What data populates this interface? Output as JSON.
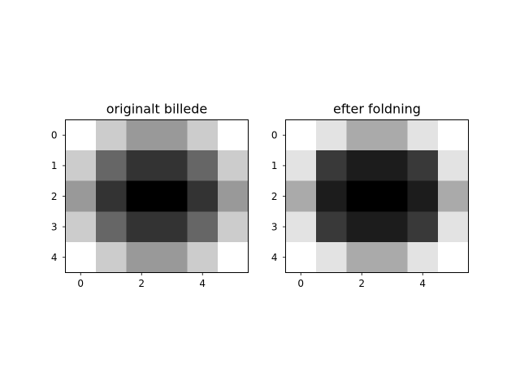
{
  "chart_data": [
    {
      "type": "heatmap",
      "title": "originalt billede",
      "colormap": "gray",
      "x_ticks": [
        "0",
        "2",
        "4"
      ],
      "x_tick_values": [
        0,
        2,
        4
      ],
      "y_ticks": [
        "0",
        "1",
        "2",
        "3",
        "4"
      ],
      "y_tick_values": [
        0,
        1,
        2,
        3,
        4
      ],
      "xlim": [
        -0.5,
        5.5
      ],
      "ylim": [
        4.5,
        -0.5
      ],
      "grid": false,
      "values": [
        [
          0.7,
          0.6,
          0.5,
          0.5,
          0.6,
          0.7
        ],
        [
          0.6,
          0.4,
          0.3,
          0.3,
          0.4,
          0.6
        ],
        [
          0.5,
          0.3,
          0.2,
          0.2,
          0.3,
          0.5
        ],
        [
          0.6,
          0.4,
          0.3,
          0.3,
          0.4,
          0.6
        ],
        [
          0.7,
          0.6,
          0.5,
          0.5,
          0.6,
          0.7
        ]
      ]
    },
    {
      "type": "heatmap",
      "title": "efter foldning",
      "colormap": "gray",
      "x_ticks": [
        "0",
        "2",
        "4"
      ],
      "x_tick_values": [
        0,
        2,
        4
      ],
      "y_ticks": [
        "0",
        "1",
        "2",
        "3",
        "4"
      ],
      "y_tick_values": [
        0,
        1,
        2,
        3,
        4
      ],
      "xlim": [
        -0.5,
        5.5
      ],
      "ylim": [
        4.5,
        -0.5
      ],
      "grid": false,
      "values": [
        [
          0.9,
          0.8,
          0.6,
          0.6,
          0.8,
          0.9
        ],
        [
          0.8,
          0.2,
          0.1,
          0.1,
          0.2,
          0.8
        ],
        [
          0.6,
          0.1,
          0.0,
          0.0,
          0.1,
          0.6
        ],
        [
          0.8,
          0.2,
          0.1,
          0.1,
          0.2,
          0.8
        ],
        [
          0.9,
          0.8,
          0.6,
          0.6,
          0.8,
          0.9
        ]
      ]
    }
  ]
}
